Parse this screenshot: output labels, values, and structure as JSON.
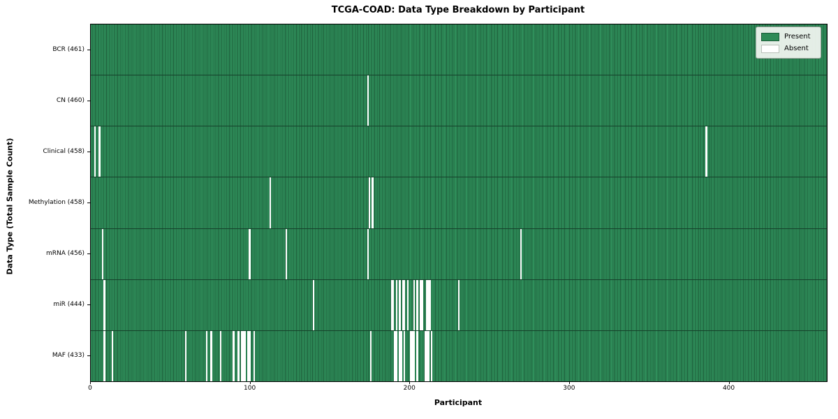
{
  "figure": {
    "background": "#ffffff"
  },
  "legend": {
    "items": [
      {
        "label": "Present",
        "color": "#2e8b57"
      },
      {
        "label": "Absent",
        "color": "#ffffff"
      }
    ]
  },
  "chart_data": {
    "type": "heatmap",
    "title": "TCGA-COAD: Data Type Breakdown by Participant",
    "xlabel": "Participant",
    "ylabel": "Data Type (Total Sample Count)",
    "n_participants": 461,
    "xlim": [
      0,
      461
    ],
    "x_ticks": [
      0,
      100,
      200,
      300,
      400
    ],
    "grid": false,
    "legend_position": "upper right",
    "colors": {
      "present": "#2e8b57",
      "absent": "#ffffff",
      "cell_edge": "#1d5c39"
    },
    "rows": [
      {
        "label": "BCR",
        "total": 461,
        "display": "BCR (461)",
        "absent_participants": []
      },
      {
        "label": "CN",
        "total": 460,
        "display": "CN (460)",
        "absent_participants": [
          173
        ]
      },
      {
        "label": "Clinical",
        "total": 458,
        "display": "Clinical (458)",
        "absent_participants": [
          2,
          5,
          385
        ]
      },
      {
        "label": "Methylation",
        "total": 458,
        "display": "Methylation (458)",
        "absent_participants": [
          112,
          174,
          176
        ]
      },
      {
        "label": "mRNA",
        "total": 456,
        "display": "mRNA (456)",
        "absent_participants": [
          7,
          99,
          122,
          173,
          269
        ]
      },
      {
        "label": "miR",
        "total": 444,
        "display": "miR (444)",
        "absent_participants": [
          8,
          139,
          188,
          189,
          191,
          193,
          195,
          196,
          198,
          202,
          204,
          206,
          207,
          210,
          211,
          212,
          230
        ]
      },
      {
        "label": "MAF",
        "total": 433,
        "display": "MAF (433)",
        "absent_participants": [
          8,
          13,
          59,
          72,
          75,
          81,
          89,
          92,
          94,
          95,
          96,
          98,
          99,
          102,
          175,
          190,
          191,
          193,
          194,
          196,
          200,
          201,
          202,
          204,
          209,
          210,
          211,
          213
        ]
      }
    ]
  }
}
